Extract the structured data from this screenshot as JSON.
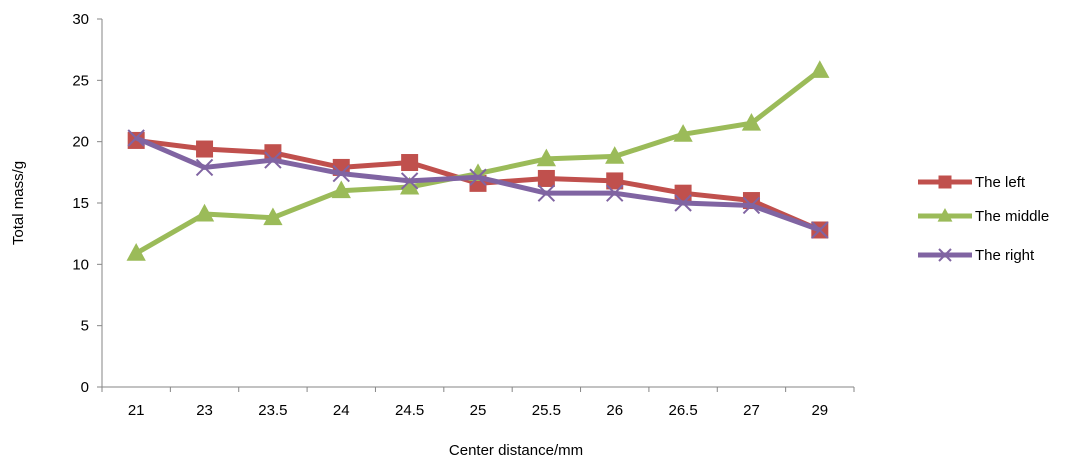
{
  "chart_data": {
    "type": "line",
    "xlabel": "Center distance/mm",
    "ylabel": "Total mass/g",
    "categories": [
      "21",
      "23",
      "23.5",
      "24",
      "24.5",
      "25",
      "25.5",
      "26",
      "26.5",
      "27",
      "29"
    ],
    "y_ticks": [
      "0",
      "5",
      "10",
      "15",
      "20",
      "25",
      "30"
    ],
    "ylim": [
      0,
      30
    ],
    "grid": false,
    "legend_position": "right",
    "series": [
      {
        "name": "The left",
        "color": "#C0504D",
        "marker": "square",
        "values": [
          20.1,
          19.4,
          19.1,
          17.9,
          18.3,
          16.6,
          17.0,
          16.8,
          15.8,
          15.2,
          12.8
        ]
      },
      {
        "name": "The middle",
        "color": "#9BBB59",
        "marker": "triangle",
        "values": [
          10.9,
          14.1,
          13.8,
          16.0,
          16.3,
          17.4,
          18.6,
          18.8,
          20.6,
          21.5,
          25.8
        ]
      },
      {
        "name": " The right",
        "color": "#8064A2",
        "marker": "x",
        "values": [
          20.3,
          17.9,
          18.5,
          17.4,
          16.8,
          17.1,
          15.8,
          15.8,
          15.0,
          14.8,
          12.8
        ]
      }
    ]
  }
}
